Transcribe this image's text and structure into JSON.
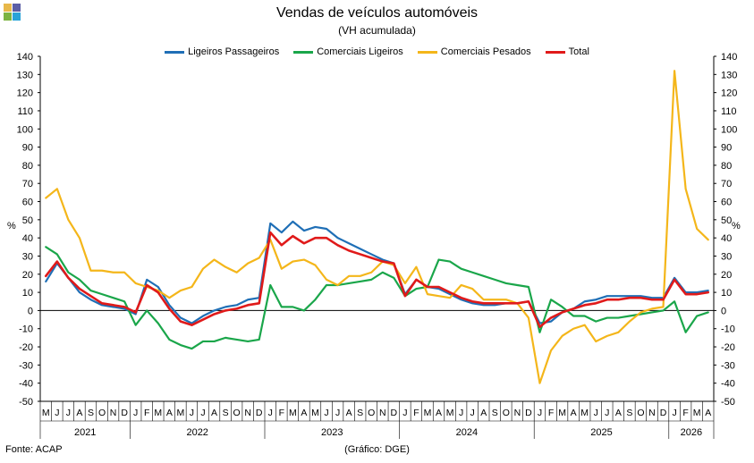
{
  "header": {
    "title": "Vendas de veículos automóveis",
    "subtitle": "(VH acumulada)"
  },
  "footer": {
    "source": "Fonte: ACAP",
    "credit": "(Gráfico: DGE)"
  },
  "logo_colors": [
    "#e8b84a",
    "#5b5ea6",
    "#7cb342",
    "#29a3d8"
  ],
  "chart_data": {
    "type": "line",
    "title": "Vendas de veículos automóveis",
    "subtitle": "(VH acumulada)",
    "ylabel_left": "%",
    "ylabel_right": "%",
    "ylim": [
      -50,
      140
    ],
    "yticks": [
      -50,
      -40,
      -30,
      -20,
      -10,
      0,
      10,
      20,
      30,
      40,
      50,
      60,
      70,
      80,
      90,
      100,
      110,
      120,
      130,
      140
    ],
    "grid": false,
    "legend_position": "top",
    "x": [
      "M",
      "J",
      "J",
      "A",
      "S",
      "O",
      "N",
      "D",
      "J",
      "F",
      "M",
      "A",
      "M",
      "J",
      "J",
      "A",
      "S",
      "O",
      "N",
      "D",
      "J",
      "F",
      "M",
      "A",
      "M",
      "J",
      "J",
      "A",
      "S",
      "O",
      "N",
      "D",
      "J",
      "F",
      "M",
      "A",
      "M",
      "J",
      "J",
      "A",
      "S",
      "O",
      "N",
      "D",
      "J",
      "F",
      "M",
      "A",
      "M",
      "J",
      "J",
      "A",
      "S",
      "O",
      "N",
      "D",
      "J",
      "F",
      "M",
      "A"
    ],
    "years": [
      {
        "label": "2021",
        "start": 0,
        "end": 7
      },
      {
        "label": "2022",
        "start": 8,
        "end": 19
      },
      {
        "label": "2023",
        "start": 20,
        "end": 31
      },
      {
        "label": "2024",
        "start": 32,
        "end": 43
      },
      {
        "label": "2025",
        "start": 44,
        "end": 55
      },
      {
        "label": "2026",
        "start": 56,
        "end": 59
      }
    ],
    "series": [
      {
        "name": "Ligeiros Passageiros",
        "color": "#1f6fb6",
        "values": [
          16,
          26,
          18,
          10,
          6,
          3,
          2,
          1,
          -2,
          17,
          13,
          3,
          -4,
          -7,
          -3,
          0,
          2,
          3,
          6,
          7,
          48,
          43,
          49,
          44,
          46,
          45,
          40,
          37,
          34,
          31,
          28,
          26,
          9,
          17,
          13,
          12,
          9,
          6,
          4,
          3,
          3,
          4,
          4,
          5,
          -7,
          -6,
          -1,
          1,
          5,
          6,
          8,
          8,
          8,
          8,
          7,
          7,
          18,
          10,
          10,
          11
        ]
      },
      {
        "name": "Comerciais Ligeiros",
        "color": "#1aa64a",
        "values": [
          35,
          31,
          21,
          17,
          11,
          9,
          7,
          5,
          -8,
          0,
          -7,
          -16,
          -19,
          -21,
          -17,
          -17,
          -15,
          -16,
          -17,
          -16,
          14,
          2,
          2,
          0,
          6,
          14,
          14,
          15,
          16,
          17,
          21,
          18,
          8,
          12,
          13,
          28,
          27,
          23,
          21,
          19,
          17,
          15,
          14,
          13,
          -12,
          6,
          2,
          -3,
          -3,
          -6,
          -4,
          -4,
          -3,
          -2,
          -1,
          0,
          5,
          -12,
          -3,
          -1
        ]
      },
      {
        "name": "Comerciais Pesados",
        "color": "#f4b61a",
        "values": [
          62,
          67,
          50,
          40,
          22,
          22,
          21,
          21,
          15,
          13,
          11,
          7,
          11,
          13,
          23,
          28,
          24,
          21,
          26,
          29,
          39,
          23,
          27,
          28,
          25,
          17,
          14,
          19,
          19,
          21,
          27,
          25,
          15,
          24,
          9,
          8,
          7,
          14,
          12,
          6,
          6,
          6,
          4,
          -4,
          -40,
          -22,
          -14,
          -10,
          -8,
          -17,
          -14,
          -12,
          -6,
          -1,
          1,
          2,
          132,
          67,
          45,
          39
        ]
      },
      {
        "name": "Total",
        "color": "#e01a1a",
        "values": [
          19,
          27,
          18,
          12,
          8,
          4,
          3,
          2,
          -1,
          14,
          10,
          1,
          -6,
          -8,
          -5,
          -2,
          0,
          1,
          3,
          4,
          43,
          36,
          41,
          37,
          40,
          40,
          36,
          33,
          31,
          29,
          27,
          26,
          8,
          17,
          13,
          13,
          10,
          7,
          5,
          4,
          4,
          4,
          4,
          5,
          -9,
          -4,
          -1,
          1,
          3,
          4,
          6,
          6,
          7,
          7,
          6,
          6,
          17,
          9,
          9,
          10
        ]
      }
    ]
  }
}
